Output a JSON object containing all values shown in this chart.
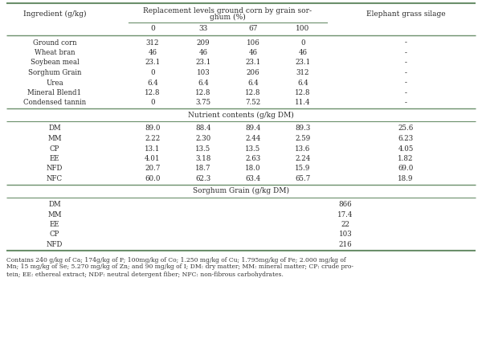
{
  "title_row1": "Replacement levels ground corn by grain sor-",
  "title_row2": "ghum (%)",
  "col_header_left": "Ingredient (g/kg)",
  "col_header_right": "Elephant grass silage",
  "sub_headers": [
    "0",
    "33",
    "67",
    "100"
  ],
  "ingredients": [
    [
      "Ground corn",
      "312",
      "209",
      "106",
      "0",
      "-"
    ],
    [
      "Wheat bran",
      "46",
      "46",
      "46",
      "46",
      "-"
    ],
    [
      "Soybean meal",
      "23.1",
      "23.1",
      "23.1",
      "23.1",
      "-"
    ],
    [
      "Sorghum Grain",
      "0",
      "103",
      "206",
      "312",
      "-"
    ],
    [
      "Urea",
      "6.4",
      "6.4",
      "6.4",
      "6.4",
      "-"
    ],
    [
      "Mineral Blend1",
      "12.8",
      "12.8",
      "12.8",
      "12.8",
      "-"
    ],
    [
      "Condensed tannin",
      "0",
      "3.75",
      "7.52",
      "11.4",
      "-"
    ]
  ],
  "nutrient_header": "Nutrient contents (g/kg DM)",
  "nutrients": [
    [
      "DM",
      "89.0",
      "88.4",
      "89.4",
      "89.3",
      "25.6"
    ],
    [
      "MM",
      "2.22",
      "2.30",
      "2.44",
      "2.59",
      "6.23"
    ],
    [
      "CP",
      "13.1",
      "13.5",
      "13.5",
      "13.6",
      "4.05"
    ],
    [
      "EE",
      "4.01",
      "3.18",
      "2.63",
      "2.24",
      "1.82"
    ],
    [
      "NFD",
      "20.7",
      "18.7",
      "18.0",
      "15.9",
      "69.0"
    ],
    [
      "NFC",
      "60.0",
      "62.3",
      "63.4",
      "65.7",
      "18.9"
    ]
  ],
  "sorghum_header": "Sorghum Grain (g/kg DM)",
  "sorghum": [
    [
      "DM",
      "866"
    ],
    [
      "MM",
      "17.4"
    ],
    [
      "EE",
      "22"
    ],
    [
      "CP",
      "103"
    ],
    [
      "NFD",
      "216"
    ]
  ],
  "footnote_lines": [
    "Contains 240 g/kg of Ca; 174g/kg of P; 100mg/kg of Co; 1.250 mg/kg of Cu; 1.795mg/kg of Fe; 2.000 mg/kg of",
    "Mn; 15 mg/kg of Se; 5.270 mg/kg of Zn; and 90 mg/kg of I; DM: dry matter; MM: mineral matter; CP: crude pro-",
    "tein; EE: ethereal extract; NDF: neutral detergent fiber; NFC: non-fibrous carbohydrates."
  ],
  "bg_color": "#ffffff",
  "text_color": "#2a2a2a",
  "line_color": "#6b8f6b"
}
